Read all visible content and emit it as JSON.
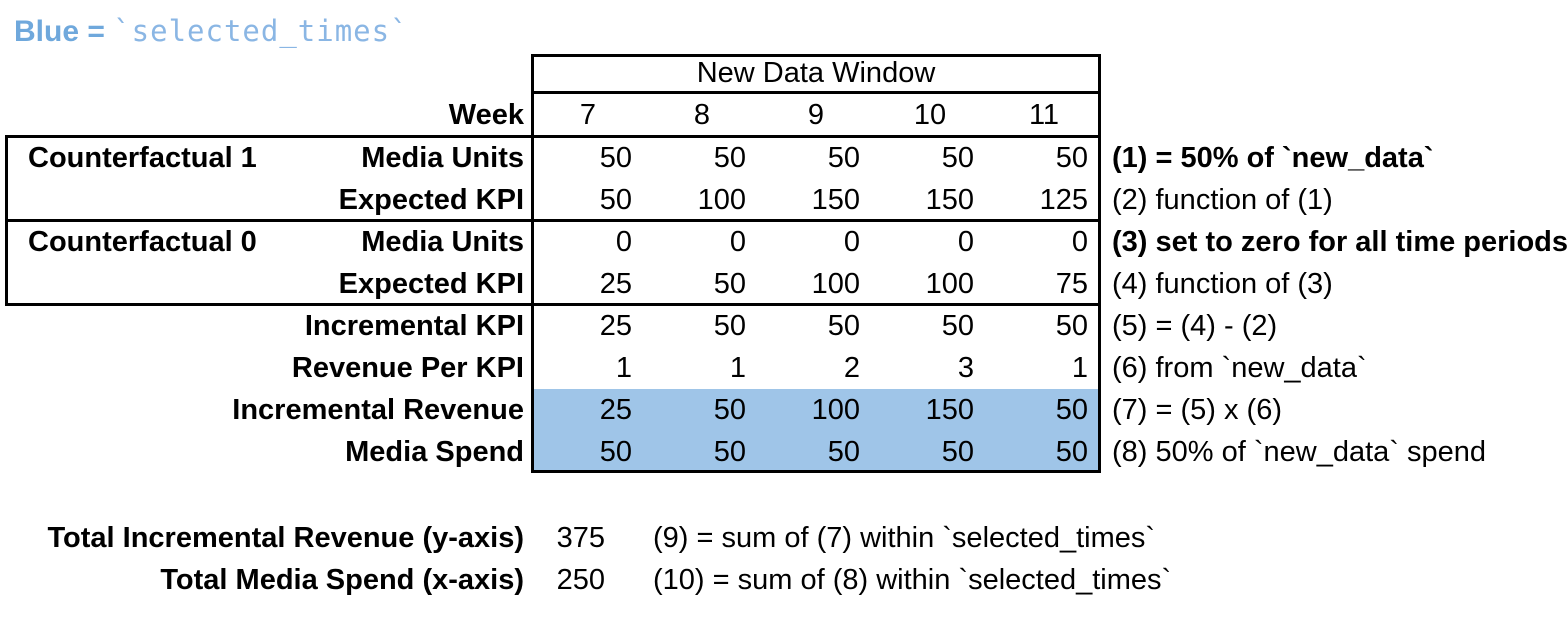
{
  "legend": {
    "prefix": "Blue = ",
    "code": "`selected_times`"
  },
  "table": {
    "header_group": "New Data Window",
    "week_label": "Week",
    "weeks": [
      "7",
      "8",
      "9",
      "10",
      "11"
    ],
    "group_labels": [
      "Counterfactual 1",
      "Counterfactual 0"
    ],
    "rows": [
      {
        "label": "Media Units",
        "values": [
          "50",
          "50",
          "50",
          "50",
          "50"
        ],
        "annotation": "(1) = 50% of `new_data`"
      },
      {
        "label": "Expected KPI",
        "values": [
          "50",
          "100",
          "150",
          "150",
          "125"
        ],
        "annotation": "(2) function of (1)"
      },
      {
        "label": "Media Units",
        "values": [
          "0",
          "0",
          "0",
          "0",
          "0"
        ],
        "annotation": "(3) set to zero for all time periods"
      },
      {
        "label": "Expected KPI",
        "values": [
          "25",
          "50",
          "100",
          "100",
          "75"
        ],
        "annotation": "(4) function of (3)"
      },
      {
        "label": "Incremental KPI",
        "values": [
          "25",
          "50",
          "50",
          "50",
          "50"
        ],
        "annotation": "(5) = (4) - (2)"
      },
      {
        "label": "Revenue Per KPI",
        "values": [
          "1",
          "1",
          "2",
          "3",
          "1"
        ],
        "annotation": "(6) from `new_data`"
      },
      {
        "label": "Incremental Revenue",
        "values": [
          "25",
          "50",
          "100",
          "150",
          "50"
        ],
        "annotation": "(7) = (5) x (6)"
      },
      {
        "label": "Media Spend",
        "values": [
          "50",
          "50",
          "50",
          "50",
          "50"
        ],
        "annotation": "(8) 50% of `new_data` spend"
      }
    ],
    "highlighted_rows": [
      "Incremental Revenue",
      "Media Spend"
    ]
  },
  "totals": [
    {
      "label": "Total Incremental Revenue (y-axis)",
      "value": "375",
      "annotation": "(9) = sum of (7) within `selected_times`"
    },
    {
      "label": "Total Media Spend (x-axis)",
      "value": "250",
      "annotation": "(10) = sum of (8) within `selected_times`"
    }
  ],
  "colors": {
    "highlight_blue": "#9fc5e8",
    "legend_blue": "#6fa8dc",
    "legend_code_blue": "#8ab6e4"
  }
}
